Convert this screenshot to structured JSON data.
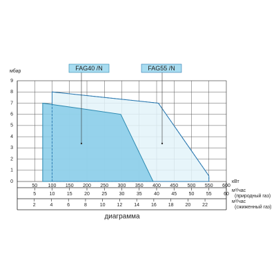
{
  "chart_data": {
    "type": "area",
    "y_label": "мбар",
    "x_label": "кВт",
    "ylim": [
      0,
      9
    ],
    "yticks": [
      0,
      1,
      2,
      3,
      4,
      5,
      6,
      7,
      8,
      9
    ],
    "xlim": [
      0,
      600
    ],
    "xticks": [
      50,
      100,
      150,
      200,
      250,
      300,
      350,
      400,
      450,
      500,
      550,
      600
    ],
    "natural_gas_axis": {
      "label": "м³/час",
      "sublabel": "(природный газ)",
      "xlim": [
        0,
        60
      ],
      "xticks": [
        5,
        10,
        15,
        20,
        25,
        30,
        35,
        40,
        45,
        50,
        55,
        60
      ]
    },
    "liquefied_gas_axis": {
      "label": "м³/час",
      "sublabel": "(сжиженный газ)",
      "xlim": [
        0,
        24.5
      ],
      "xticks": [
        2,
        4,
        6,
        8,
        10,
        12,
        14,
        16,
        18,
        20,
        22
      ]
    },
    "grid": true,
    "caption": "диаграмма",
    "series": [
      {
        "name": "FAG55 /N",
        "color": "#2a78b0",
        "fill": "#e3f3f9",
        "x": [
          100,
          100,
          405,
          550,
          550
        ],
        "values": [
          0,
          8,
          7,
          0.5,
          0
        ]
      },
      {
        "name": "FAG40 /N",
        "color": "#2a88b0",
        "fill": "#86cbe8",
        "x": [
          73,
          73,
          297,
          390
        ],
        "values": [
          0,
          7,
          6,
          0
        ]
      }
    ]
  }
}
